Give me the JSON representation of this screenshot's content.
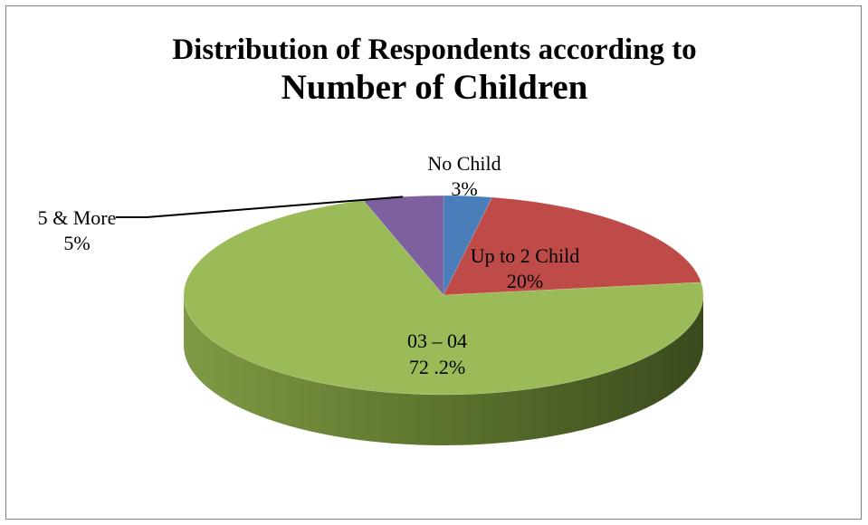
{
  "chart_data": {
    "type": "pie",
    "title_line1": "Distribution of Respondents according to",
    "title_line2": "Number of Children",
    "slices": [
      {
        "name": "No Child",
        "value_label": "3%",
        "value": 3,
        "color": "#4a7ebb"
      },
      {
        "name": "Up to 2 Child",
        "value_label": "20%",
        "value": 20,
        "color": "#be4b48"
      },
      {
        "name": "03 – 04",
        "value_label": "72 .2%",
        "value": 72.2,
        "color": "#9bbb59"
      },
      {
        "name": "5 & More",
        "value_label": "5%",
        "value": 5,
        "color": "#7d60a0"
      }
    ],
    "style": "3d-pie",
    "legend": "none"
  }
}
